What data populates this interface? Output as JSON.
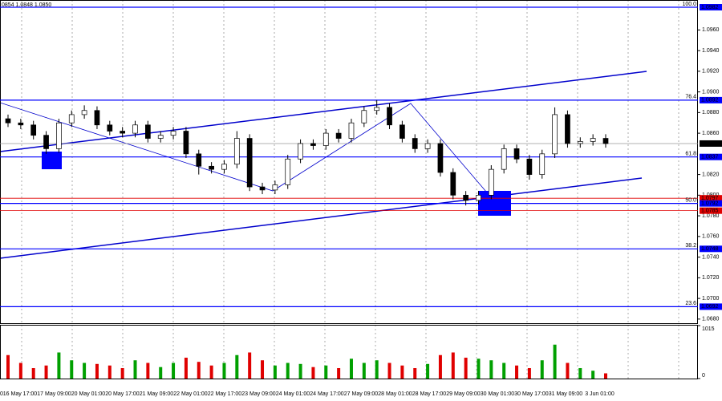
{
  "chart_data": {
    "type": "candlestick",
    "header": "0854 1.0848 1.0850",
    "ylim": [
      1.0676,
      1.0989
    ],
    "yticks": [
      {
        "value": 1.068,
        "label": "1.0680"
      },
      {
        "value": 1.07,
        "label": "1.0700"
      },
      {
        "value": 1.072,
        "label": "1.0720"
      },
      {
        "value": 1.074,
        "label": "1.0740"
      },
      {
        "value": 1.076,
        "label": "1.0760"
      },
      {
        "value": 1.078,
        "label": "1.0780"
      },
      {
        "value": 1.08,
        "label": "1.0800"
      },
      {
        "value": 1.082,
        "label": "1.0820"
      },
      {
        "value": 1.086,
        "label": "1.0860"
      },
      {
        "value": 1.088,
        "label": "1.0880"
      },
      {
        "value": 1.09,
        "label": "1.0900"
      },
      {
        "value": 1.092,
        "label": "1.0920"
      },
      {
        "value": 1.094,
        "label": "1.0940"
      },
      {
        "value": 1.096,
        "label": "1.0960"
      }
    ],
    "up_color": "#00a000",
    "down_color": "#e00000",
    "series": [
      {
        "open": [
          1.0874,
          1.087,
          1.0868,
          1.0858,
          1.0845,
          1.087,
          1.0878,
          1.0882,
          1.0868,
          1.0862,
          1.086,
          1.0868,
          1.0855,
          1.0858,
          1.0862,
          1.084,
          1.0828,
          1.0825,
          1.083,
          1.0855,
          1.0808,
          1.0805,
          1.081,
          1.0835,
          1.085,
          1.0848,
          1.086,
          1.0855,
          1.087,
          1.0882,
          1.0885,
          1.0868,
          1.0855,
          1.0845,
          1.085,
          1.0822,
          1.08,
          1.0795,
          1.08,
          1.0825,
          1.0845,
          1.0835,
          1.082,
          1.084,
          1.0878,
          1.085,
          1.0852,
          1.0855
        ],
        "high": [
          1.0878,
          1.0874,
          1.0872,
          1.0862,
          1.0874,
          1.0882,
          1.0887,
          1.0886,
          1.0872,
          1.0866,
          1.0872,
          1.0872,
          1.0862,
          1.0866,
          1.0866,
          1.0844,
          1.0832,
          1.0834,
          1.0862,
          1.0859,
          1.0812,
          1.0814,
          1.0839,
          1.0854,
          1.0854,
          1.0864,
          1.0864,
          1.0874,
          1.0886,
          1.0892,
          1.0889,
          1.0872,
          1.0859,
          1.0854,
          1.0854,
          1.0826,
          1.0804,
          1.0804,
          1.0829,
          1.0849,
          1.0849,
          1.0839,
          1.0844,
          1.0885,
          1.0882,
          1.0856,
          1.0859,
          1.0859
        ],
        "low": [
          1.0866,
          1.0864,
          1.0854,
          1.084,
          1.0841,
          1.0866,
          1.0874,
          1.0864,
          1.0858,
          1.0856,
          1.0856,
          1.0851,
          1.0851,
          1.0854,
          1.0836,
          1.082,
          1.0821,
          1.0821,
          1.0826,
          1.0804,
          1.0801,
          1.0801,
          1.0806,
          1.0831,
          1.0844,
          1.0844,
          1.0851,
          1.0851,
          1.0866,
          1.0878,
          1.0864,
          1.0851,
          1.0841,
          1.0841,
          1.0818,
          1.0796,
          1.079,
          1.0791,
          1.0796,
          1.0821,
          1.0831,
          1.0815,
          1.0816,
          1.0836,
          1.0846,
          1.0846,
          1.0848,
          1.0846
        ],
        "close": [
          1.087,
          1.0868,
          1.0858,
          1.0845,
          1.087,
          1.0878,
          1.0882,
          1.0868,
          1.0862,
          1.086,
          1.0868,
          1.0855,
          1.0858,
          1.0862,
          1.084,
          1.0828,
          1.0825,
          1.083,
          1.0855,
          1.0808,
          1.0805,
          1.081,
          1.0835,
          1.085,
          1.0848,
          1.086,
          1.0855,
          1.087,
          1.0882,
          1.0885,
          1.0868,
          1.0855,
          1.0845,
          1.085,
          1.0822,
          1.08,
          1.0795,
          1.08,
          1.0825,
          1.0845,
          1.0835,
          1.082,
          1.084,
          1.0878,
          1.085,
          1.0852,
          1.0855,
          1.085
        ]
      }
    ],
    "volume": {
      "values": [
        450,
        300,
        200,
        250,
        500,
        350,
        300,
        280,
        250,
        200,
        350,
        300,
        220,
        300,
        400,
        320,
        250,
        300,
        450,
        500,
        350,
        250,
        300,
        280,
        220,
        250,
        200,
        380,
        300,
        350,
        300,
        250,
        200,
        280,
        450,
        500,
        400,
        380,
        350,
        300,
        250,
        200,
        350,
        650,
        300,
        200,
        150,
        100
      ],
      "ylim": [
        0,
        1015
      ],
      "yticks": [
        0,
        1015
      ]
    },
    "current": {
      "value": 1.085,
      "label": "1.0850"
    },
    "levels": [
      {
        "value": 1.0982,
        "label": "1.0982",
        "fib": "100.0",
        "color": "#0000ff"
      },
      {
        "value": 1.0892,
        "label": "1.0892",
        "fib": "76.4",
        "color": "#0000ff"
      },
      {
        "value": 1.0837,
        "label": "1.0837",
        "fib": "61.8",
        "color": "#0000ff"
      },
      {
        "value": 1.0797,
        "label": "1.0797",
        "color": "#e00000"
      },
      {
        "value": 1.0792,
        "label": "1.0792",
        "fib": "50.0",
        "color": "#0000ff"
      },
      {
        "value": 1.0785,
        "label": "1.0785",
        "color": "#e00000"
      },
      {
        "value": 1.0748,
        "label": "1.0748",
        "fib": "38.2",
        "color": "#0000ff"
      },
      {
        "value": 1.0692,
        "label": "1.0692",
        "fib": "23.6",
        "color": "#0000ff"
      }
    ],
    "xlabels": [
      "0",
      "16 May 17:00",
      "17 May 09:00",
      "20 May 01:00",
      "20 May 17:00",
      "21 May 09:00",
      "22 May 01:00",
      "22 May 17:00",
      "23 May 09:00",
      "24 May 01:00",
      "24 May 17:00",
      "27 May 09:00",
      "28 May 01:00",
      "28 May 17:00",
      "29 May 09:00",
      "30 May 01:00",
      "30 May 17:00",
      "31 May 09:00",
      "3 Jun 01:00"
    ]
  }
}
